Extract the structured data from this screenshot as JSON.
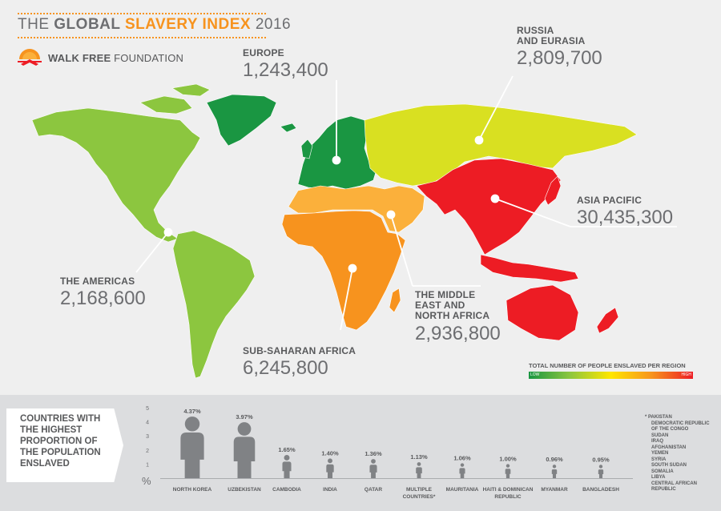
{
  "header": {
    "title_prefix": "THE ",
    "title_bold": "GLOBAL ",
    "title_highlight": "SLAVERY INDEX",
    "title_year": " 2016",
    "logo_bold": "WALK FREE",
    "logo_light": " FOUNDATION"
  },
  "regions": {
    "europe": {
      "name": "EUROPE",
      "value": "1,243,400"
    },
    "russia": {
      "name_line1": "RUSSIA",
      "name_line2": "AND EURASIA",
      "value": "2,809,700"
    },
    "asia": {
      "name": "ASIA PACIFIC",
      "value": "30,435,300"
    },
    "americas": {
      "name": "THE AMERICAS",
      "value": "2,168,600"
    },
    "mena": {
      "name_line1": "THE MIDDLE",
      "name_line2": "EAST AND",
      "name_line3": "NORTH AFRICA",
      "value": "2,936,800"
    },
    "africa": {
      "name": "SUB-SAHARAN AFRICA",
      "value": "6,245,800"
    }
  },
  "legend": {
    "title": "TOTAL NUMBER OF PEOPLE ENSLAVED PER REGION",
    "low": "LOW",
    "high": "HIGH"
  },
  "bottom_label": {
    "line1": "COUNTRIES WITH",
    "line2": "THE HIGHEST",
    "line3": "PROPORTION OF",
    "line4": "THE POPULATION",
    "line5": "ENSLAVED"
  },
  "note": {
    "asterisk": "*",
    "countries": [
      "PAKISTAN",
      "DEMOCRATIC REPUBLIC",
      "OF THE CONGO",
      "SUDAN",
      "IRAQ",
      "AFGHANISTAN",
      "YEMEN",
      "SYRIA",
      "SOUTH SUDAN",
      "SOMALIA",
      "LIBYA",
      "CENTRAL AFRICAN",
      "REPUBLIC"
    ]
  },
  "colors": {
    "europe": "#1a9642",
    "americas": "#8cc63f",
    "russia": "#d9e021",
    "mena": "#fbb03b",
    "africa": "#f7931e",
    "asia": "#ed1c24",
    "figure": "#808285",
    "accent": "#f7931e"
  },
  "chart_data": {
    "type": "bar",
    "ylabel": "%",
    "ylim": [
      0,
      5
    ],
    "yticks": [
      "1",
      "2",
      "3",
      "4",
      "5"
    ],
    "categories": [
      "NORTH KOREA",
      "UZBEKISTAN",
      "CAMBODIA",
      "INDIA",
      "QATAR",
      "MULTIPLE COUNTRIES*",
      "MAURITANIA",
      "HAITI & DOMINICAN REPUBLIC",
      "MYANMAR",
      "BANGLADESH"
    ],
    "category_lines": [
      [
        "NORTH KOREA"
      ],
      [
        "UZBEKISTAN"
      ],
      [
        "CAMBODIA"
      ],
      [
        "INDIA"
      ],
      [
        "QATAR"
      ],
      [
        "MULTIPLE",
        "COUNTRIES*"
      ],
      [
        "MAURITANIA"
      ],
      [
        "HAITI & DOMINICAN",
        "REPUBLIC"
      ],
      [
        "MYANMAR"
      ],
      [
        "BANGLADESH"
      ]
    ],
    "values": [
      4.37,
      3.97,
      1.65,
      1.4,
      1.36,
      1.13,
      1.06,
      1.0,
      0.96,
      0.95
    ],
    "value_labels": [
      "4.37%",
      "3.97%",
      "1.65%",
      "1.40%",
      "1.36%",
      "1.13%",
      "1.06%",
      "1.00%",
      "0.96%",
      "0.95%"
    ]
  }
}
